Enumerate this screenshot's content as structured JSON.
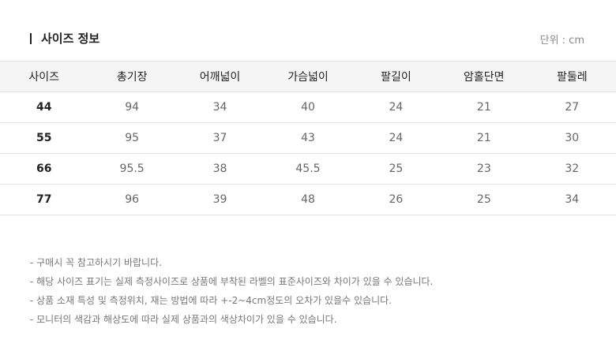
{
  "header": {
    "title": "사이즈 정보",
    "unit": "단위 : cm"
  },
  "table": {
    "columns": [
      "사이즈",
      "총기장",
      "어깨넓이",
      "가슴넓이",
      "팔길이",
      "암홀단면",
      "팔둘레"
    ],
    "rows": [
      [
        "44",
        "94",
        "34",
        "40",
        "24",
        "21",
        "27"
      ],
      [
        "55",
        "95",
        "37",
        "43",
        "24",
        "21",
        "30"
      ],
      [
        "66",
        "95.5",
        "38",
        "45.5",
        "25",
        "23",
        "32"
      ],
      [
        "77",
        "96",
        "39",
        "48",
        "26",
        "25",
        "34"
      ]
    ]
  },
  "notes": [
    "- 구매시 꼭 참고하시기 바랍니다.",
    "- 해당 사이즈 표기는 실제 측정사이즈로 상품에 부착된 라벨의 표준사이즈와 차이가 있을 수 있습니다.",
    "- 상품 소재 특성 및 측정위치, 재는 방법에 따라 +-2~4cm정도의 오차가 있을수 있습니다.",
    "- 모니터의 색감과 해상도에 따라 실제 상품과의 색상차이가 있을 수 있습니다."
  ]
}
